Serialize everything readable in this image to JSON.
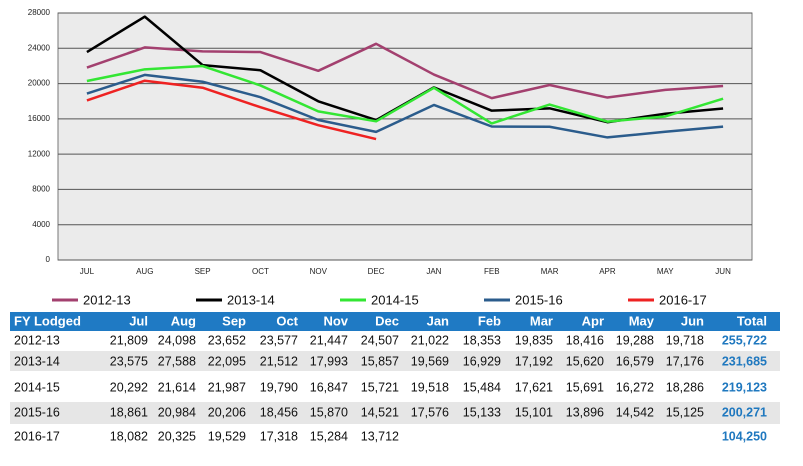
{
  "chart_data": {
    "type": "line",
    "categories": [
      "JUL",
      "AUG",
      "SEP",
      "OCT",
      "NOV",
      "DEC",
      "JAN",
      "FEB",
      "MAR",
      "APR",
      "MAY",
      "JUN"
    ],
    "series": [
      {
        "name": "2012-13",
        "color": "#a3406f",
        "values": [
          21809,
          24098,
          23652,
          23577,
          21447,
          24507,
          21022,
          18353,
          19835,
          18416,
          19288,
          19718
        ]
      },
      {
        "name": "2013-14",
        "color": "#000000",
        "values": [
          23575,
          27588,
          22095,
          21512,
          17993,
          15857,
          19569,
          16929,
          17192,
          15620,
          16579,
          17176
        ]
      },
      {
        "name": "2014-15",
        "color": "#33e633",
        "values": [
          20292,
          21614,
          21987,
          19790,
          16847,
          15721,
          19518,
          15484,
          17621,
          15691,
          16272,
          18286
        ]
      },
      {
        "name": "2015-16",
        "color": "#2b5c8c",
        "values": [
          18861,
          20984,
          20206,
          18456,
          15870,
          14521,
          17576,
          15133,
          15101,
          13896,
          14542,
          15125
        ]
      },
      {
        "name": "2016-17",
        "color": "#ee2222",
        "values": [
          18082,
          20325,
          19529,
          17318,
          15284,
          13712,
          null,
          null,
          null,
          null,
          null,
          null
        ]
      }
    ],
    "ylim": [
      0,
      28000
    ],
    "yticks": [
      0,
      4000,
      8000,
      12000,
      16000,
      20000,
      24000,
      28000
    ],
    "grid": true
  },
  "table": {
    "header": [
      "FY Lodged",
      "Jul",
      "Aug",
      "Sep",
      "Oct",
      "Nov",
      "Dec",
      "Jan",
      "Feb",
      "Mar",
      "Apr",
      "May",
      "Jun",
      "Total"
    ],
    "rows": [
      {
        "label": "2012-13",
        "values": [
          "21,809",
          "24,098",
          "23,652",
          "23,577",
          "21,447",
          "24,507",
          "21,022",
          "18,353",
          "19,835",
          "18,416",
          "19,288",
          "19,718"
        ],
        "total": "255,722"
      },
      {
        "label": "2013-14",
        "values": [
          "23,575",
          "27,588",
          "22,095",
          "21,512",
          "17,993",
          "15,857",
          "19,569",
          "16,929",
          "17,192",
          "15,620",
          "16,579",
          "17,176"
        ],
        "total": "231,685"
      },
      {
        "label": "2014-15",
        "values": [
          "20,292",
          "21,614",
          "21,987",
          "19,790",
          "16,847",
          "15,721",
          "19,518",
          "15,484",
          "17,621",
          "15,691",
          "16,272",
          "18,286"
        ],
        "total": "219,123"
      },
      {
        "label": "2015-16",
        "values": [
          "18,861",
          "20,984",
          "20,206",
          "18,456",
          "15,870",
          "14,521",
          "17,576",
          "15,133",
          "15,101",
          "13,896",
          "14,542",
          "15,125"
        ],
        "total": "200,271"
      },
      {
        "label": "2016-17",
        "values": [
          "18,082",
          "20,325",
          "19,529",
          "17,318",
          "15,284",
          "13,712"
        ],
        "total": "104,250"
      }
    ]
  }
}
